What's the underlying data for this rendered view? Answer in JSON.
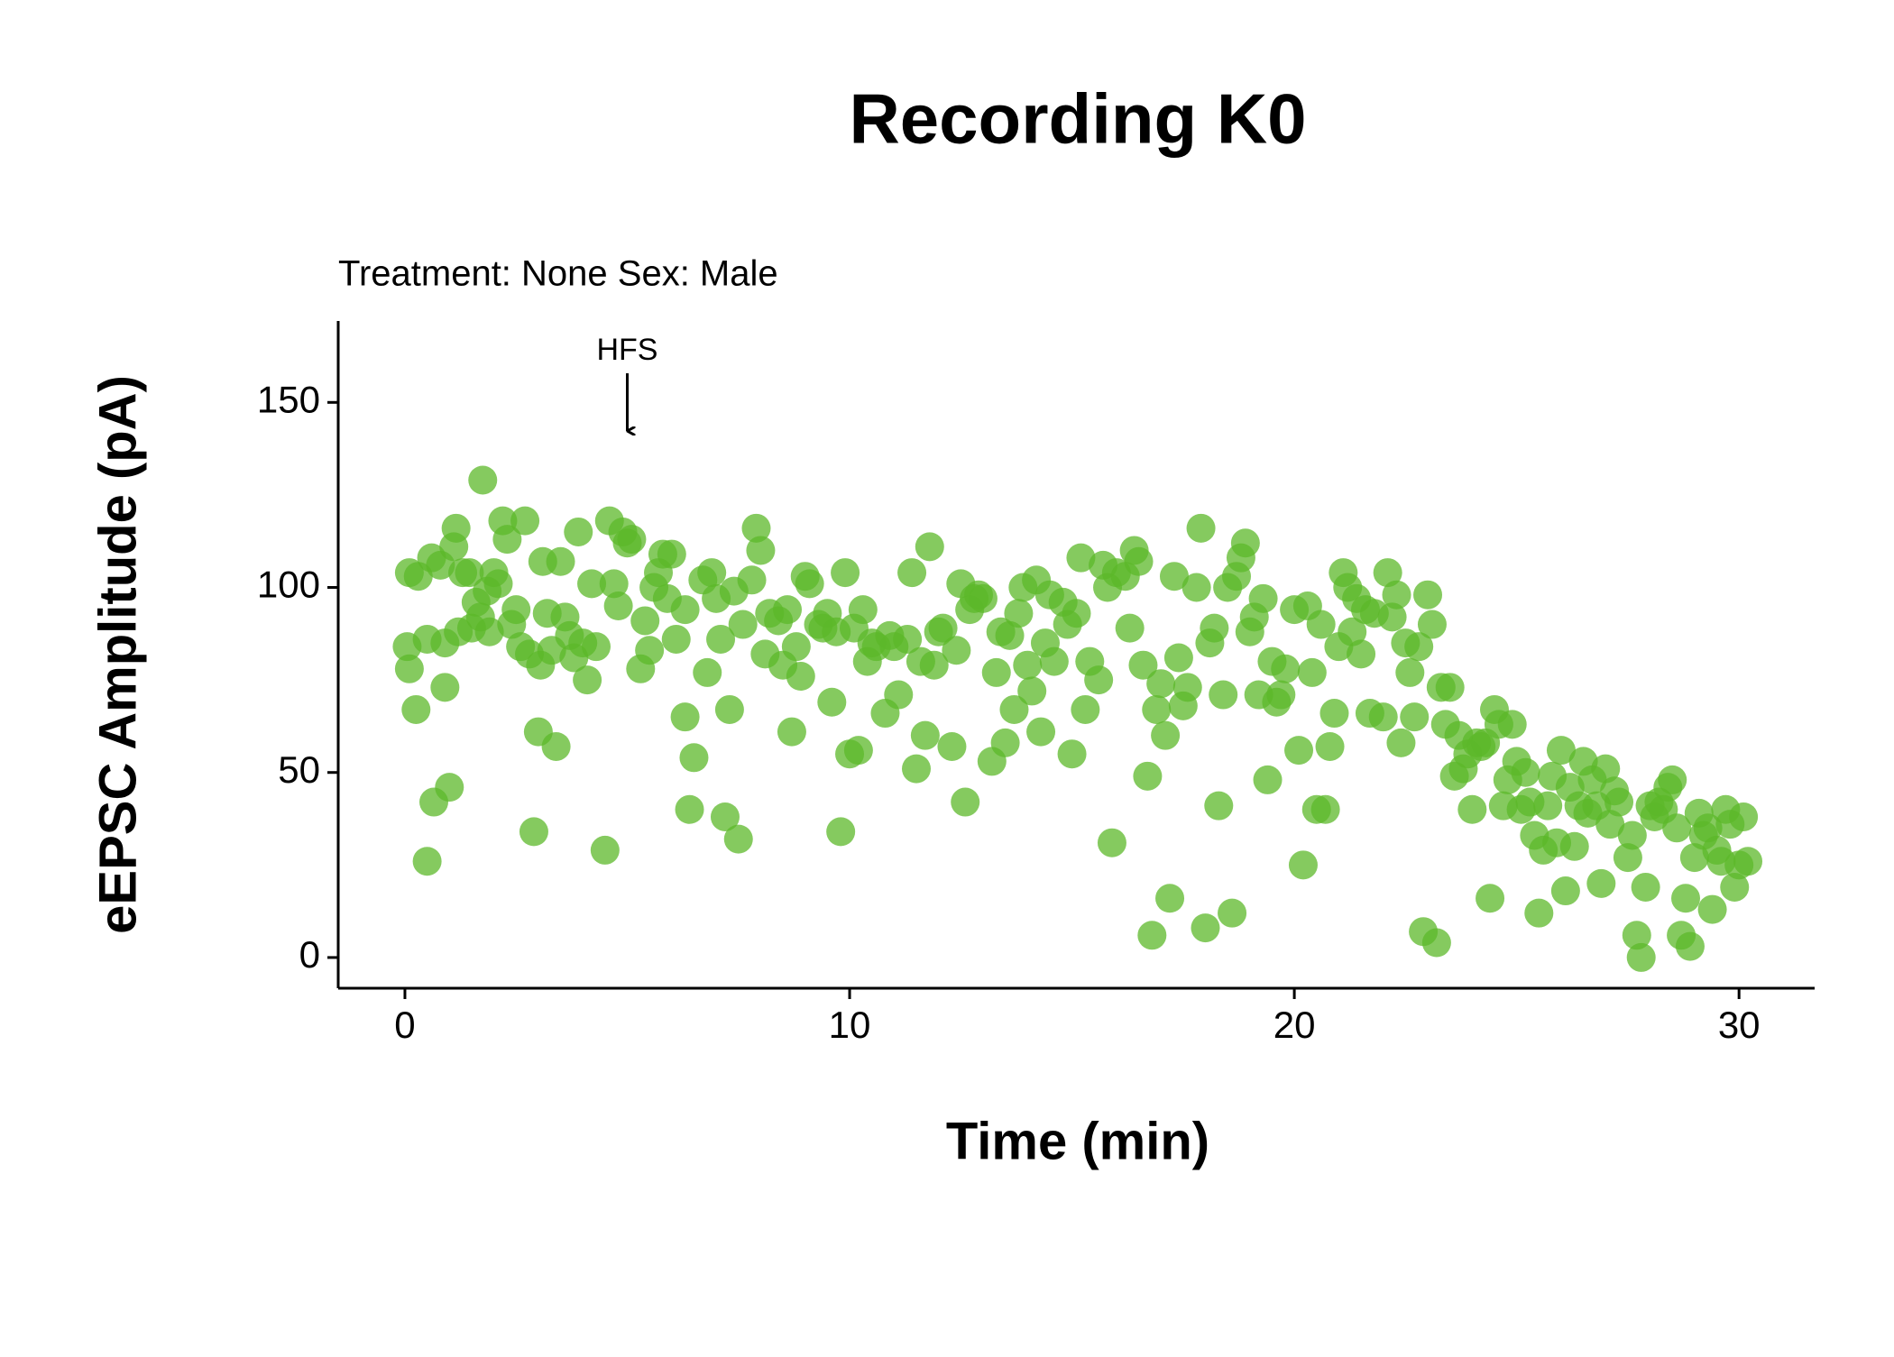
{
  "chart_data": {
    "type": "scatter",
    "title": "Recording K0",
    "subtitle": "Treatment: None  Sex: Male",
    "x_label": "Time (min)",
    "y_label": "eEPSC Amplitude (pA)",
    "annotation": {
      "text": "HFS",
      "x": 5
    },
    "color": "#5cb82a",
    "xlim": [
      -1.5,
      31.7
    ],
    "ylim": [
      -8.3,
      172
    ],
    "xticks": [
      0,
      10,
      20,
      30
    ],
    "yticks": [
      0,
      50,
      100,
      150
    ],
    "x": [
      0.05,
      0.1,
      0.1,
      0.3,
      0.25,
      0.5,
      0.5,
      0.6,
      0.65,
      0.8,
      0.9,
      0.9,
      1.0,
      1.1,
      1.15,
      1.2,
      1.3,
      1.45,
      1.5,
      1.6,
      1.7,
      1.75,
      1.85,
      1.9,
      2.0,
      2.1,
      2.2,
      2.3,
      2.4,
      2.5,
      2.6,
      2.7,
      2.8,
      2.9,
      3.0,
      3.05,
      3.1,
      3.2,
      3.3,
      3.4,
      3.5,
      3.6,
      3.7,
      3.8,
      3.9,
      4.0,
      4.1,
      4.2,
      4.3,
      4.5,
      4.6,
      4.7,
      4.8,
      4.9,
      5.0,
      5.1,
      5.3,
      5.4,
      5.5,
      5.6,
      5.7,
      5.8,
      5.9,
      6.0,
      6.1,
      6.3,
      6.3,
      6.4,
      6.5,
      6.7,
      6.8,
      6.9,
      7.0,
      7.1,
      7.2,
      7.3,
      7.4,
      7.5,
      7.6,
      7.8,
      7.9,
      8.0,
      8.1,
      8.2,
      8.4,
      8.5,
      8.6,
      8.7,
      8.8,
      8.9,
      9.0,
      9.1,
      9.3,
      9.4,
      9.5,
      9.6,
      9.7,
      9.8,
      9.9,
      10.0,
      10.1,
      10.2,
      10.3,
      10.4,
      10.5,
      10.6,
      10.8,
      10.9,
      11.0,
      11.1,
      11.3,
      11.4,
      11.5,
      11.6,
      11.7,
      11.8,
      11.9,
      12.0,
      12.1,
      12.3,
      12.4,
      12.5,
      12.6,
      12.7,
      12.8,
      12.9,
      13.0,
      13.2,
      13.3,
      13.4,
      13.5,
      13.6,
      13.7,
      13.8,
      13.9,
      14.0,
      14.1,
      14.2,
      14.3,
      14.4,
      14.5,
      14.6,
      14.8,
      14.9,
      15.0,
      15.1,
      15.2,
      15.3,
      15.4,
      15.6,
      15.7,
      15.8,
      15.9,
      16.0,
      16.2,
      16.3,
      16.4,
      16.5,
      16.6,
      16.7,
      16.8,
      16.9,
      17.0,
      17.1,
      17.2,
      17.3,
      17.4,
      17.5,
      17.6,
      17.8,
      17.9,
      18.0,
      18.1,
      18.2,
      18.3,
      18.4,
      18.5,
      18.6,
      18.7,
      18.8,
      18.9,
      19.0,
      19.1,
      19.2,
      19.3,
      19.4,
      19.5,
      19.6,
      19.7,
      19.8,
      20.0,
      20.1,
      20.2,
      20.3,
      20.4,
      20.5,
      20.6,
      20.7,
      20.8,
      20.9,
      21.0,
      21.1,
      21.2,
      21.3,
      21.4,
      21.5,
      21.6,
      21.7,
      21.8,
      22.0,
      22.1,
      22.2,
      22.3,
      22.4,
      22.5,
      22.6,
      22.7,
      22.8,
      22.9,
      23.0,
      23.1,
      23.2,
      23.3,
      23.4,
      23.5,
      23.6,
      23.7,
      23.8,
      23.9,
      24.0,
      24.1,
      24.2,
      24.3,
      24.4,
      24.5,
      24.6,
      24.7,
      24.8,
      24.9,
      25.0,
      25.1,
      25.2,
      25.3,
      25.4,
      25.5,
      25.6,
      25.7,
      25.8,
      25.9,
      26.0,
      26.1,
      26.2,
      26.3,
      26.4,
      26.5,
      26.6,
      26.7,
      26.8,
      26.9,
      27.0,
      27.1,
      27.2,
      27.3,
      27.5,
      27.6,
      27.7,
      27.8,
      27.9,
      28.0,
      28.1,
      28.2,
      28.3,
      28.4,
      28.5,
      28.6,
      28.7,
      28.8,
      28.9,
      29.0,
      29.1,
      29.2,
      29.3,
      29.4,
      29.5,
      29.6,
      29.7,
      29.8,
      29.9,
      30.0,
      30.1,
      30.2
    ],
    "values": [
      84,
      78,
      104,
      103,
      67,
      86,
      26,
      108,
      42,
      106,
      73,
      85,
      46,
      111,
      116,
      88,
      104,
      104,
      89,
      96,
      92,
      129,
      99,
      88,
      104,
      101,
      118,
      113,
      90,
      94,
      84,
      118,
      82,
      34,
      61,
      79,
      107,
      93,
      83,
      57,
      107,
      92,
      87,
      81,
      115,
      85,
      75,
      101,
      84,
      29,
      118,
      101,
      95,
      115,
      112,
      113,
      78,
      91,
      83,
      100,
      104,
      109,
      97,
      109,
      86,
      94,
      65,
      40,
      54,
      102,
      77,
      104,
      97,
      86,
      38,
      67,
      99,
      32,
      90,
      102,
      116,
      110,
      82,
      93,
      91,
      79,
      94,
      61,
      84,
      76,
      103,
      101,
      90,
      89,
      93,
      69,
      88,
      34,
      104,
      55,
      89,
      56,
      94,
      80,
      85,
      84,
      66,
      87,
      84,
      71,
      86,
      104,
      51,
      80,
      60,
      111,
      79,
      88,
      89,
      57,
      83,
      101,
      42,
      94,
      97,
      98,
      97,
      53,
      77,
      88,
      58,
      87,
      67,
      93,
      100,
      79,
      72,
      102,
      61,
      85,
      98,
      80,
      96,
      90,
      55,
      93,
      108,
      67,
      80,
      75,
      106,
      100,
      31,
      104,
      103,
      89,
      110,
      107,
      79,
      49,
      6,
      67,
      74,
      60,
      16,
      103,
      81,
      68,
      73,
      100,
      116,
      8,
      85,
      89,
      41,
      71,
      100,
      12,
      103,
      108,
      112,
      88,
      92,
      71,
      97,
      48,
      80,
      69,
      71,
      78,
      94,
      56,
      25,
      95,
      77,
      40,
      90,
      40,
      57,
      66,
      84,
      104,
      100,
      88,
      97,
      82,
      94,
      66,
      93,
      65,
      104,
      92,
      98,
      58,
      85,
      77,
      65,
      84,
      7,
      98,
      90,
      4,
      73,
      63,
      73,
      49,
      60,
      51,
      55,
      40,
      58,
      57,
      58,
      16,
      67,
      63,
      41,
      48,
      63,
      53,
      40,
      50,
      42,
      33,
      12,
      29,
      41,
      49,
      31,
      56,
      18,
      46,
      30,
      41,
      53,
      39,
      48,
      41,
      20,
      51,
      36,
      45,
      42,
      27,
      33,
      6,
      0,
      19,
      41,
      38,
      42,
      40,
      46,
      48,
      35,
      6,
      16,
      3,
      27,
      39,
      33,
      35,
      13,
      29,
      26,
      40,
      36,
      19,
      25,
      38,
      26
    ]
  }
}
